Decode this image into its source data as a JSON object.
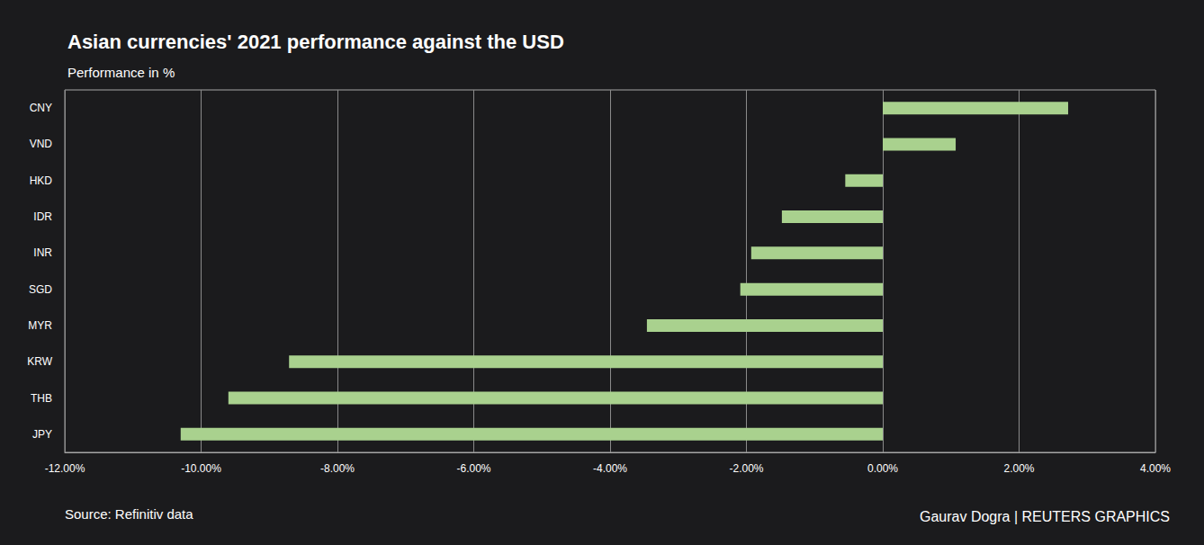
{
  "chart_data": {
    "type": "bar",
    "orientation": "horizontal",
    "title": "Asian currencies' 2021 performance against the USD",
    "subtitle": "Performance in %",
    "annotations": [
      "Source: Refinitiv data",
      "Gaurav Dogra | REUTERS GRAPHICS"
    ],
    "categories": [
      "CNY",
      "VND",
      "HKD",
      "IDR",
      "INR",
      "SGD",
      "MYR",
      "KRW",
      "THB",
      "JPY"
    ],
    "values": [
      2.72,
      1.07,
      -0.55,
      -1.48,
      -1.93,
      -2.09,
      -3.46,
      -8.71,
      -9.6,
      -10.3
    ],
    "color": "#a9d18e",
    "xlim": [
      -12,
      4
    ],
    "xticks": [
      {
        "value": -12,
        "label": "-12.00%"
      },
      {
        "value": -10,
        "label": "-10.00%"
      },
      {
        "value": -8,
        "label": "-8.00%"
      },
      {
        "value": -6,
        "label": "-6.00%"
      },
      {
        "value": -4,
        "label": "-4.00%"
      },
      {
        "value": -2,
        "label": "-2.00%"
      },
      {
        "value": 0,
        "label": "0.00%"
      },
      {
        "value": 2,
        "label": "2.00%"
      },
      {
        "value": 4,
        "label": "4.00%"
      }
    ],
    "grid": true,
    "data_labels": false
  }
}
